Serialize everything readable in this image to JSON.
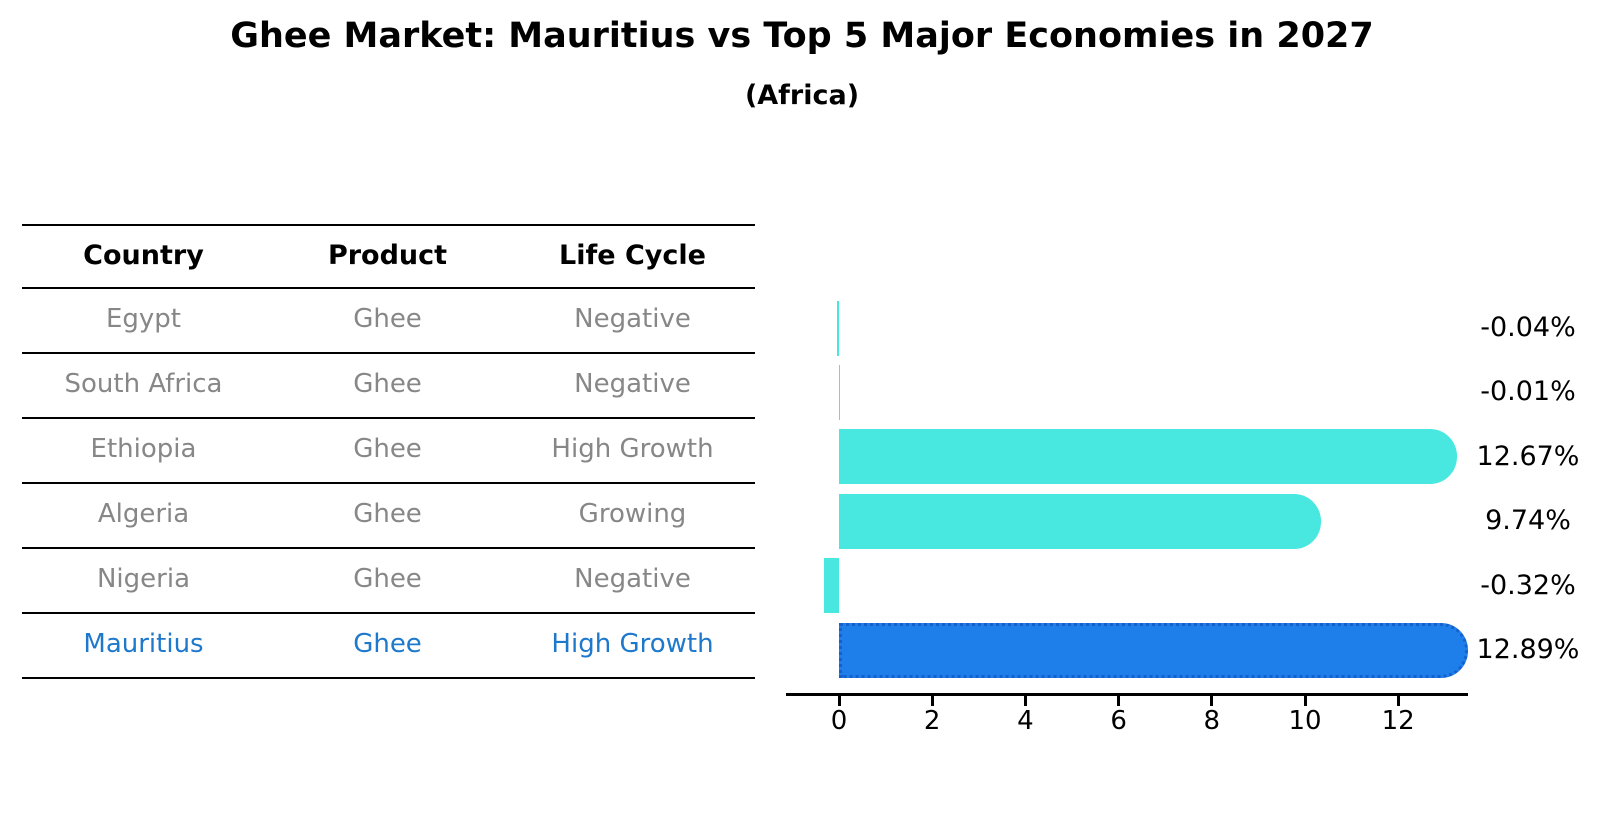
{
  "title": "Ghee Market: Mauritius vs Top 5 Major Economies in 2027",
  "subtitle": "(Africa)",
  "table": {
    "headers": [
      "Country",
      "Product",
      "Life Cycle"
    ],
    "rows": [
      {
        "country": "Egypt",
        "product": "Ghee",
        "life_cycle": "Negative",
        "highlight": false
      },
      {
        "country": "South Africa",
        "product": "Ghee",
        "life_cycle": "Negative",
        "highlight": false
      },
      {
        "country": "Ethiopia",
        "product": "Ghee",
        "life_cycle": "High Growth",
        "highlight": false
      },
      {
        "country": "Algeria",
        "product": "Ghee",
        "life_cycle": "Growing",
        "highlight": false
      },
      {
        "country": "Nigeria",
        "product": "Ghee",
        "life_cycle": "Negative",
        "highlight": false
      },
      {
        "country": "Mauritius",
        "product": "Ghee",
        "life_cycle": "High Growth",
        "highlight": true
      }
    ]
  },
  "chart_data": {
    "type": "bar",
    "orientation": "horizontal",
    "title": "Ghee Market: Mauritius vs Top 5 Major Economies in 2027 (Africa)",
    "categories": [
      "Egypt",
      "South Africa",
      "Ethiopia",
      "Algeria",
      "Nigeria",
      "Mauritius"
    ],
    "values": [
      -0.04,
      -0.01,
      12.67,
      9.74,
      -0.32,
      12.89
    ],
    "value_labels": [
      "-0.04%",
      "-0.01%",
      "12.67%",
      "9.74%",
      "-0.32%",
      "12.89%"
    ],
    "unit": "percent CAGR",
    "x_ticks": [
      0,
      2,
      4,
      6,
      8,
      10,
      12
    ],
    "xlim": [
      -1.1,
      13.6
    ],
    "grid": false,
    "legend": "none",
    "highlight_index": 5,
    "bar_color_default": "#48e8e1",
    "bar_color_highlight": "#1e7feb",
    "highlight_border_color": "#1461cd"
  },
  "colors": {
    "background": "#ffffff",
    "title_text": "#000000",
    "table_header_text": "#000000",
    "table_row_text": "#878787",
    "highlight_text": "#1e78cc",
    "axis": "#000000"
  }
}
